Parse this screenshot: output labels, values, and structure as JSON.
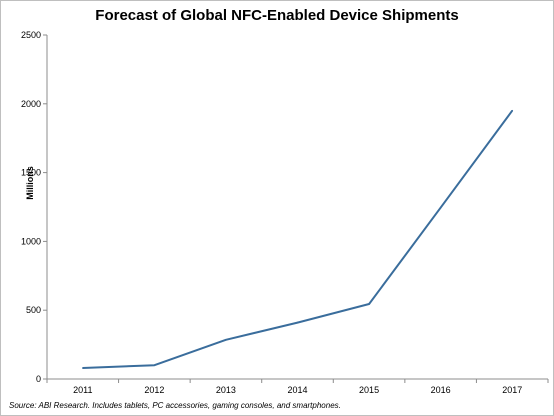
{
  "chart_data": {
    "type": "line",
    "title": "Forecast of Global NFC-Enabled Device Shipments",
    "ylabel": "Millions",
    "xlabel": "",
    "source": "Source: ABI Research. Includes tablets, PC accessories, gaming consoles, and smartphones.",
    "x": [
      "2011",
      "2012",
      "2013",
      "2014",
      "2015",
      "2016",
      "2017"
    ],
    "series": [
      {
        "values": [
          80,
          100,
          285,
          410,
          545,
          1245,
          1950
        ]
      }
    ],
    "ylim": [
      0,
      2500
    ],
    "yticks": [
      0,
      500,
      1000,
      1500,
      2000,
      2500
    ],
    "grid": false,
    "legend": "none",
    "colors": {
      "line": "#3a6d9c",
      "axis": "#8c8c8c"
    }
  }
}
